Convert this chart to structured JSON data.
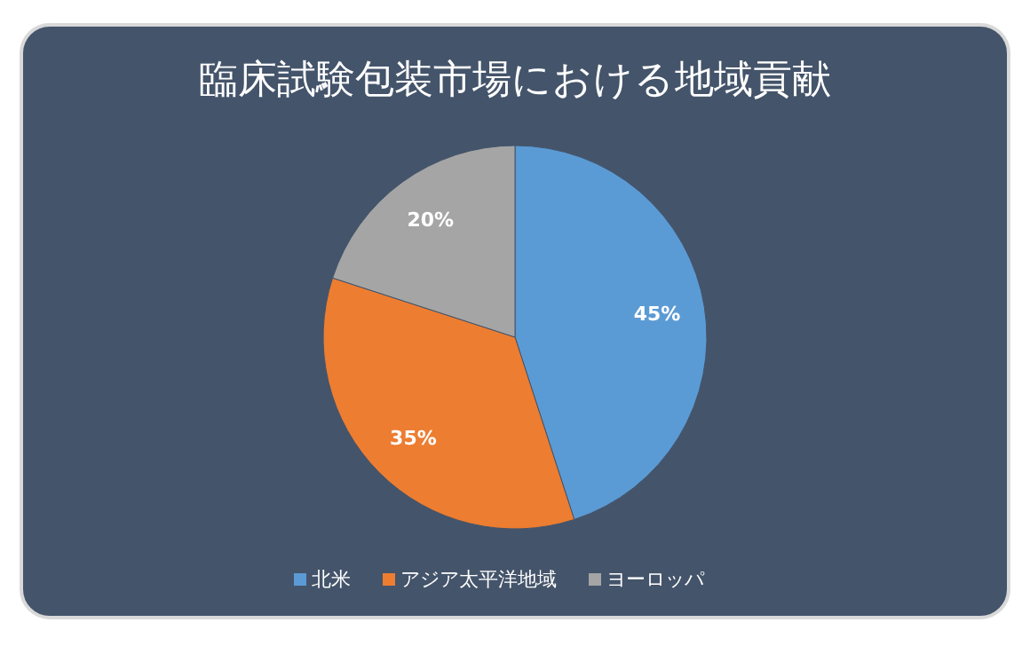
{
  "chart_data": {
    "type": "pie",
    "title": "臨床試験包装市場における地域貢献",
    "categories": [
      "北米",
      "アジア太平洋地域",
      "ヨーロッパ"
    ],
    "values": [
      45,
      35,
      20
    ],
    "colors": [
      "#5b9bd5",
      "#ed7d31",
      "#a5a5a5"
    ],
    "value_labels": [
      "45%",
      "35%",
      "20%"
    ],
    "legend": "bottom"
  }
}
